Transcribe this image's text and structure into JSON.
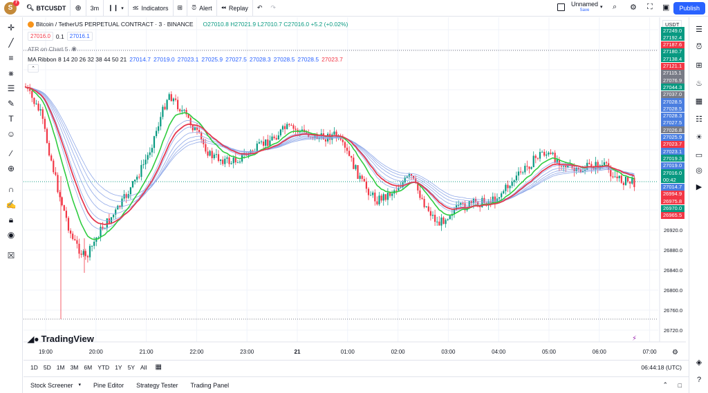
{
  "topbar": {
    "avatar_letter": "S",
    "notification_count": "7",
    "symbol": "BTCUSDT",
    "interval": "3m",
    "indicators_label": "Indicators",
    "alert_label": "Alert",
    "replay_label": "Replay",
    "layout_name": "Unnamed",
    "layout_status": "Save",
    "publish_label": "Publish"
  },
  "legend": {
    "title": "Bitcoin / TetherUS PERPETUAL CONTRACT · 3 · BINANCE",
    "ohlc": "O27010.8 H27021.9 L27010.7 C27016.0 +5.2 (+0.02%)",
    "bid": "27016.0",
    "spread": "0.1",
    "ask": "27016.1",
    "atr": "ATR on Chart 5",
    "ribbon_label": "MA Ribbon 8 14 20 26 32 38 44 50 21",
    "ribbon_values": [
      "27014.7",
      "27019.0",
      "27023.1",
      "27025.9",
      "27027.5",
      "27028.3",
      "27028.5",
      "27028.5",
      "27023.7"
    ],
    "ribbon_value_colors": [
      "#2962ff",
      "#2962ff",
      "#2962ff",
      "#2962ff",
      "#2962ff",
      "#2962ff",
      "#2962ff",
      "#2962ff",
      "#f23645"
    ]
  },
  "price_axis": {
    "currency": "USDT",
    "labels": [
      "26920.0",
      "26880.0",
      "26840.0",
      "26800.0",
      "26760.0",
      "26720.0"
    ],
    "boxes": [
      {
        "text": "27249.0",
        "color": "#089981"
      },
      {
        "text": "27192.4",
        "color": "#089981"
      },
      {
        "text": "27187.6",
        "color": "#f23645"
      },
      {
        "text": "27180.7",
        "color": "#089981"
      },
      {
        "text": "27138.4",
        "color": "#089981"
      },
      {
        "text": "27121.1",
        "color": "#f23645"
      },
      {
        "text": "27115.1",
        "color": "#787b86"
      },
      {
        "text": "27076.9",
        "color": "#787b86"
      },
      {
        "text": "27044.3",
        "color": "#089981"
      },
      {
        "text": "27037.0",
        "color": "#787b86"
      },
      {
        "text": "27028.5",
        "color": "#4a7ee0"
      },
      {
        "text": "27028.5",
        "color": "#4a7ee0"
      },
      {
        "text": "27028.3",
        "color": "#4a7ee0"
      },
      {
        "text": "27027.5",
        "color": "#4a7ee0"
      },
      {
        "text": "27026.8",
        "color": "#787b86"
      },
      {
        "text": "27025.9",
        "color": "#4a7ee0"
      },
      {
        "text": "27023.7",
        "color": "#f23645"
      },
      {
        "text": "27023.1",
        "color": "#4a7ee0"
      },
      {
        "text": "27019.3",
        "color": "#089981"
      },
      {
        "text": "27019.0",
        "color": "#4a7ee0"
      },
      {
        "text": "27016.0",
        "color": "#089981"
      },
      {
        "text": "00:42",
        "color": "#089981"
      },
      {
        "text": "27014.7",
        "color": "#4a7ee0"
      },
      {
        "text": "26994.9",
        "color": "#f23645"
      },
      {
        "text": "26975.8",
        "color": "#f23645"
      },
      {
        "text": "26970.0",
        "color": "#089981"
      },
      {
        "text": "26965.5",
        "color": "#f23645"
      }
    ]
  },
  "time_axis": {
    "labels": [
      "19:00",
      "20:00",
      "21:00",
      "22:00",
      "23:00",
      "21",
      "01:00",
      "02:00",
      "03:00",
      "04:00",
      "05:00",
      "06:00",
      "07:00"
    ]
  },
  "timeframes": [
    "1D",
    "5D",
    "1M",
    "3M",
    "6M",
    "YTD",
    "1Y",
    "5Y",
    "All"
  ],
  "clock": "06:44:18 (UTC)",
  "logo_text": "TradingView",
  "bottom_tabs": [
    "Stock Screener",
    "Pine Editor",
    "Strategy Tester",
    "Trading Panel"
  ],
  "colors": {
    "up": "#089981",
    "down": "#f23645",
    "accent": "#2962ff",
    "ribbon_fast": "#2ecc40",
    "ribbon_slow": "#e53950",
    "ribbon_lines": "#8fa8e8"
  }
}
